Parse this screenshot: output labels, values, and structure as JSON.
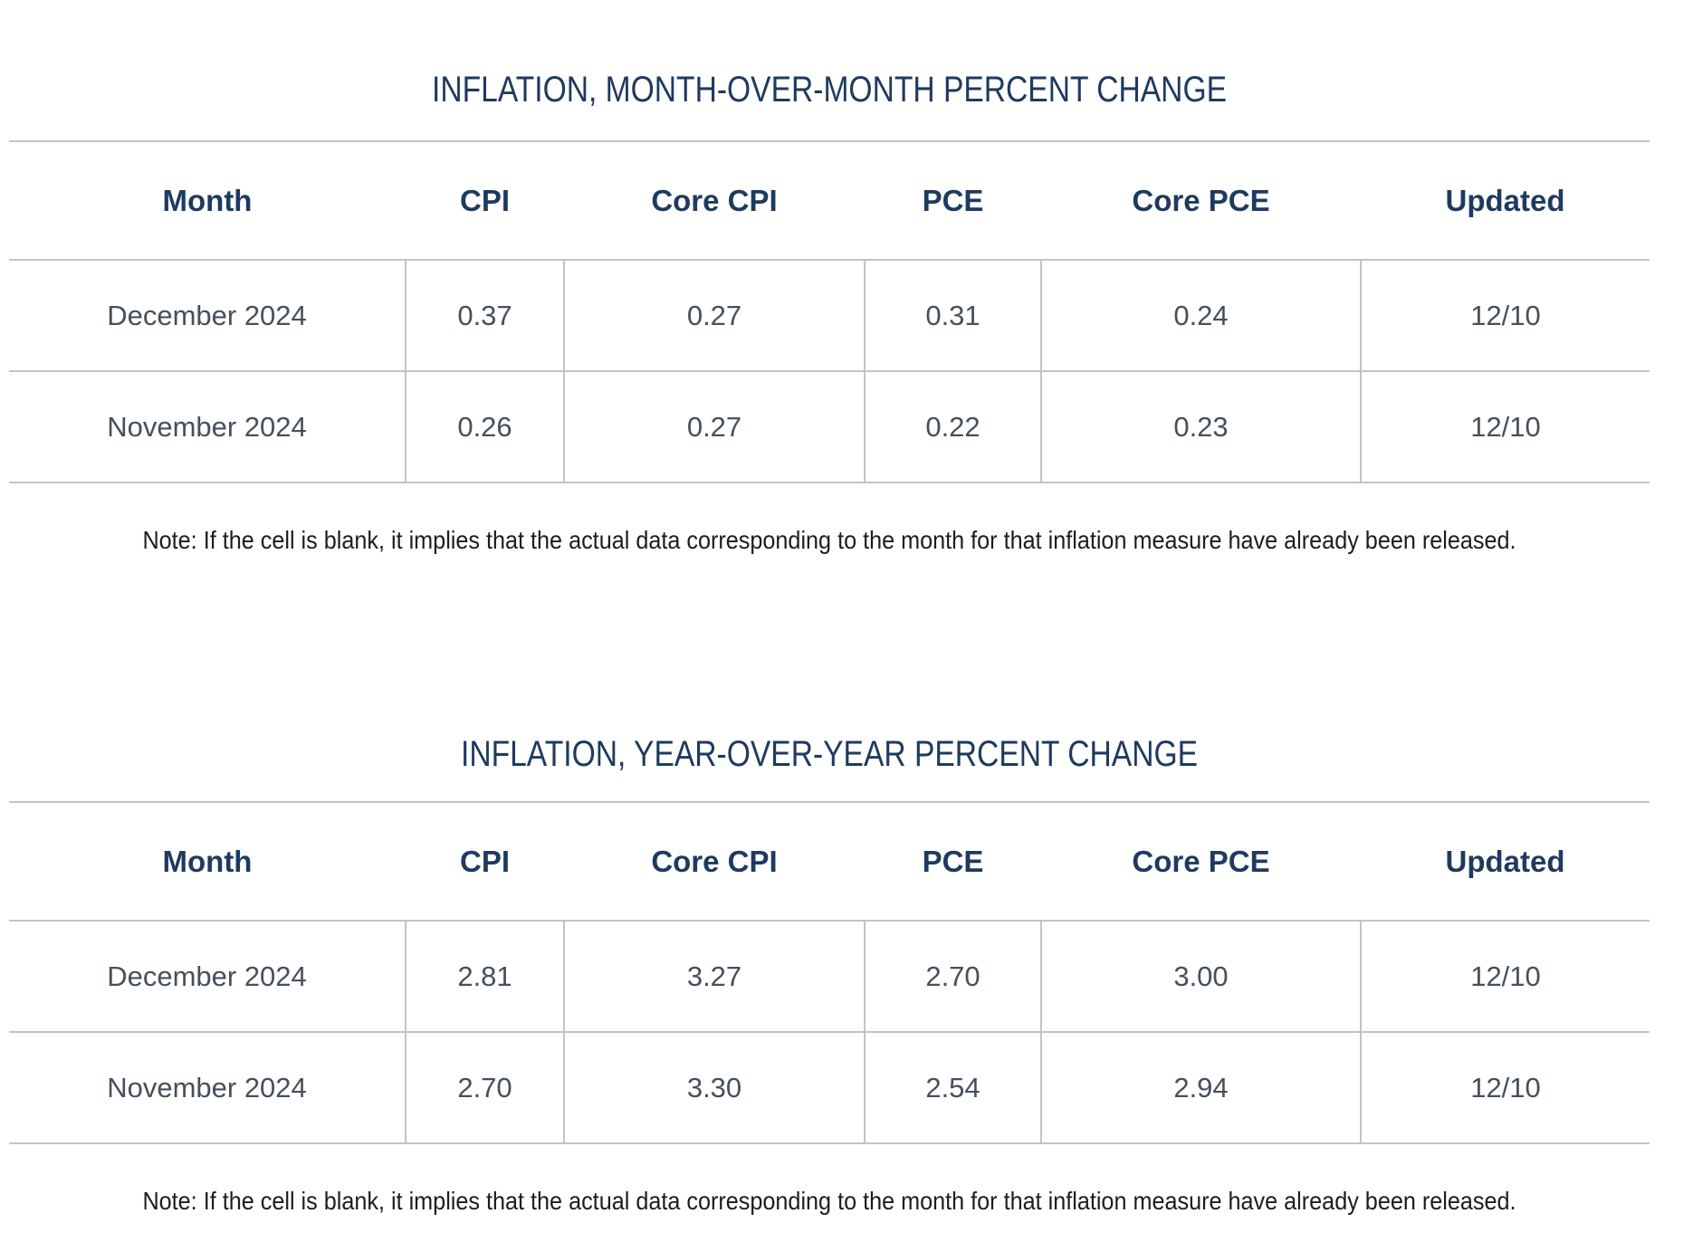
{
  "tables": [
    {
      "title": "INFLATION, MONTH-OVER-MONTH PERCENT CHANGE",
      "columns": [
        "Month",
        "CPI",
        "Core CPI",
        "PCE",
        "Core PCE",
        "Updated"
      ],
      "rows": [
        [
          "December 2024",
          "0.37",
          "0.27",
          "0.31",
          "0.24",
          "12/10"
        ],
        [
          "November 2024",
          "0.26",
          "0.27",
          "0.22",
          "0.23",
          "12/10"
        ]
      ],
      "note": "Note: If the cell is blank, it implies that the actual data corresponding to the month for that inflation measure have already been released."
    },
    {
      "title": "INFLATION, YEAR-OVER-YEAR PERCENT CHANGE",
      "columns": [
        "Month",
        "CPI",
        "Core CPI",
        "PCE",
        "Core PCE",
        "Updated"
      ],
      "rows": [
        [
          "December 2024",
          "2.81",
          "3.27",
          "2.70",
          "3.00",
          "12/10"
        ],
        [
          "November 2024",
          "2.70",
          "3.30",
          "2.54",
          "2.94",
          "12/10"
        ]
      ],
      "note": "Note: If the cell is blank, it implies that the actual data corresponding to the month for that inflation measure have already been released."
    }
  ],
  "colors": {
    "title": "#1e3a5f",
    "header": "#1e3a5f",
    "body_text": "#46505c",
    "note_text": "#1b1d21",
    "border": "#c0c4c8",
    "background": "#ffffff"
  }
}
